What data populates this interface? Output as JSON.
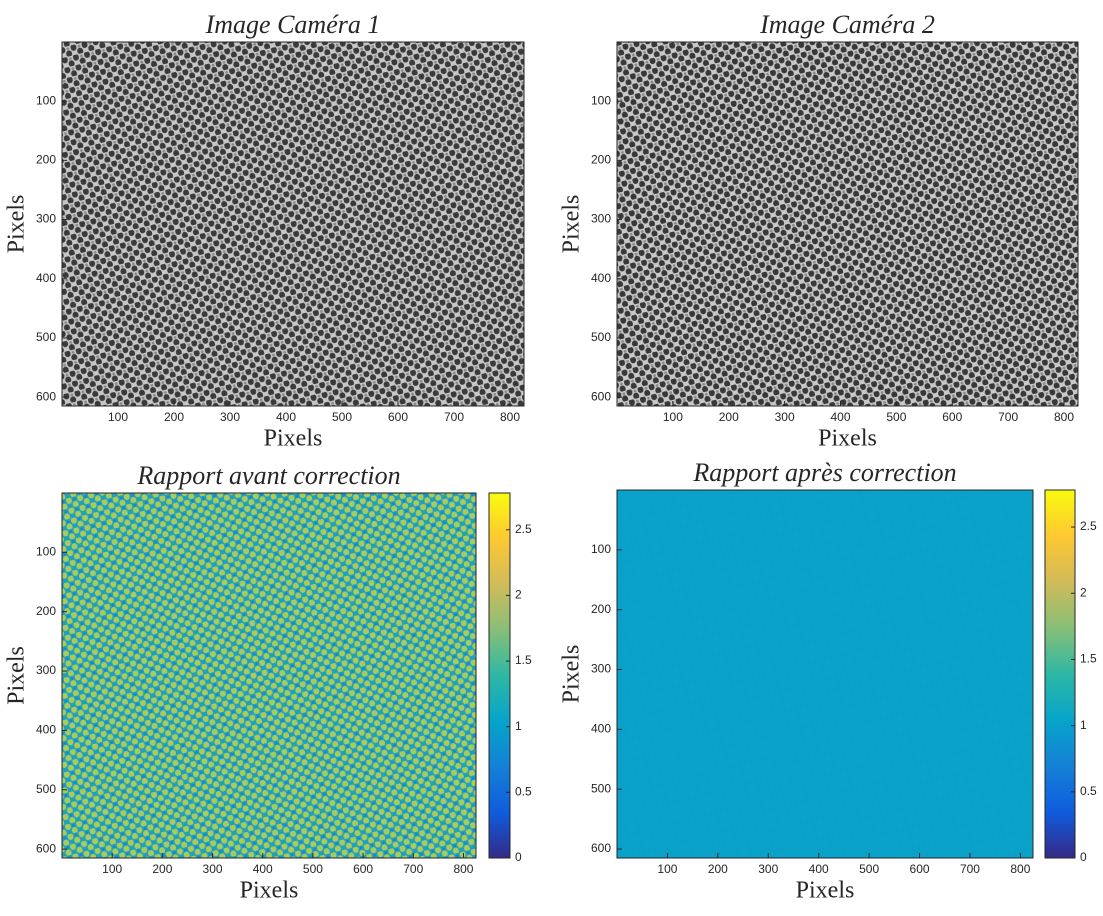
{
  "chart_data": [
    {
      "type": "image",
      "title": "Image Caméra 1",
      "xlabel": "Pixels",
      "ylabel": "Pixels",
      "xlim": [
        0,
        825
      ],
      "ylim": [
        0,
        615
      ],
      "y_reversed": true,
      "xticks": [
        100,
        200,
        300,
        400,
        500,
        600,
        700,
        800
      ],
      "yticks": [
        100,
        200,
        300,
        400,
        500,
        600
      ],
      "colors": [
        "#c6c6c6",
        "#3a3a3a",
        "#8a8a8a"
      ]
    },
    {
      "type": "image",
      "title": "Image Caméra 2",
      "xlabel": "Pixels",
      "ylabel": "Pixels",
      "xlim": [
        0,
        825
      ],
      "ylim": [
        0,
        615
      ],
      "y_reversed": true,
      "xticks": [
        100,
        200,
        300,
        400,
        500,
        600,
        700,
        800
      ],
      "yticks": [
        100,
        200,
        300,
        400,
        500,
        600
      ],
      "colors": [
        "#c8c8c8",
        "#383838",
        "#8a8a8a"
      ]
    },
    {
      "type": "image",
      "title": "Rapport avant correction",
      "xlabel": "Pixels",
      "ylabel": "Pixels",
      "xlim": [
        0,
        825
      ],
      "ylim": [
        0,
        615
      ],
      "y_reversed": true,
      "xticks": [
        100,
        200,
        300,
        400,
        500,
        600,
        700,
        800
      ],
      "yticks": [
        100,
        200,
        300,
        400,
        500,
        600
      ],
      "colors": [
        "#22a0bb",
        "#a6cc5e",
        "#1a84d2"
      ],
      "colorbar": {
        "lim": [
          0,
          2.78
        ],
        "ticks": [
          0,
          0.5,
          1,
          1.5,
          2,
          2.5
        ],
        "colors": [
          "#352a87",
          "#0f5cdd",
          "#1481d6",
          "#06a4ca",
          "#2eb7a4",
          "#87bf77",
          "#d1bb59",
          "#fec832",
          "#f9fb0e"
        ]
      }
    },
    {
      "type": "image",
      "title": "Rapport après correction",
      "xlabel": "Pixels",
      "ylabel": "Pixels",
      "xlim": [
        0,
        825
      ],
      "ylim": [
        0,
        615
      ],
      "y_reversed": true,
      "xticks": [
        100,
        200,
        300,
        400,
        500,
        600,
        700,
        800
      ],
      "yticks": [
        100,
        200,
        300,
        400,
        500,
        600
      ],
      "colors": [
        "#08a2ca",
        "#0aa0c8",
        "#0b9cc8"
      ],
      "colorbar": {
        "lim": [
          0,
          2.78
        ],
        "ticks": [
          0,
          0.5,
          1,
          1.5,
          2,
          2.5
        ],
        "colors": [
          "#352a87",
          "#0f5cdd",
          "#1481d6",
          "#06a4ca",
          "#2eb7a4",
          "#87bf77",
          "#d1bb59",
          "#fec832",
          "#f9fb0e"
        ]
      }
    }
  ]
}
